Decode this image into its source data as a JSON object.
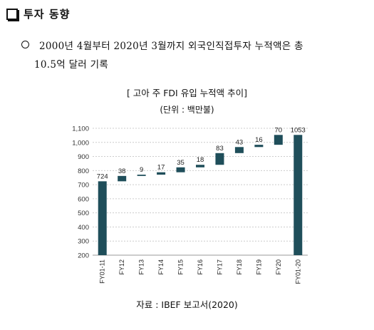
{
  "section": {
    "heading": "투자 동향"
  },
  "bullet": {
    "line1": "2000년 4월부터 2020년 3월까지 외국인직접투자 누적액은 총",
    "line2": "10.5억 달러 기록"
  },
  "chart_data": {
    "type": "waterfall",
    "title": "[ 고아 주 FDI 유입 누적액 추이]",
    "unit": "(단위 : 백만불)",
    "categories": [
      "FY01-11",
      "FY12",
      "FY13",
      "FY14",
      "FY15",
      "FY16",
      "FY17",
      "FY18",
      "FY19",
      "FY20",
      "FY01-20"
    ],
    "values": [
      724,
      38,
      9,
      17,
      35,
      18,
      83,
      43,
      16,
      70,
      1053
    ],
    "labels": [
      "724",
      "38",
      "9",
      "17",
      "35",
      "18",
      "83",
      "43",
      "16",
      "70",
      "1053"
    ],
    "total_indices": [
      0,
      10
    ],
    "ylim": [
      200,
      1100
    ],
    "yticks": [
      200,
      300,
      400,
      500,
      600,
      700,
      800,
      900,
      1000,
      1100
    ],
    "ytick_labels": [
      "200",
      "300",
      "400",
      "500",
      "600",
      "700",
      "800",
      "900",
      "1,000",
      "1,100"
    ],
    "grid": true,
    "bar_color": "#1f4e5a"
  },
  "source": "자료 : IBEF 보고서(2020)"
}
